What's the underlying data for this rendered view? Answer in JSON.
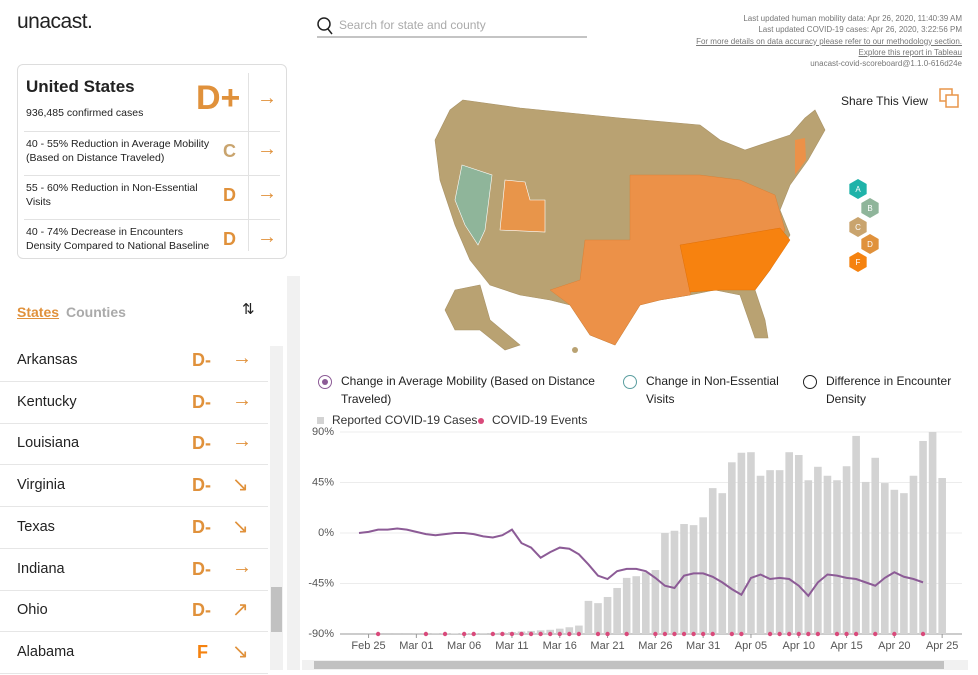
{
  "header": {
    "logo": "unacast.",
    "search_placeholder": "Search for state and county",
    "meta": [
      "Last updated human mobility data: Apr 26, 2020, 11:40:39 AM",
      "Last updated COVID-19 cases: Apr 26, 2020, 3:22:56 PM",
      "For more details on data accuracy please refer to our methodology section.",
      "Explore this report in Tableau",
      "unacast-covid-scoreboard@1.1.0-616d24e"
    ],
    "share": "Share This View"
  },
  "summary": {
    "title": "United States",
    "subtitle": "936,485 confirmed cases",
    "grade": "D+",
    "trend": "→",
    "metrics": [
      {
        "label": "40 - 55% Reduction in Average Mobility (Based on Distance Traveled)",
        "grade": "C",
        "trend": "→"
      },
      {
        "label": "55 - 60% Reduction in Non-Essential Visits",
        "grade": "D",
        "trend": "→"
      },
      {
        "label": "40 - 74% Decrease in Encounters Density Compared to National Baseline",
        "grade": "D",
        "trend": "→"
      }
    ]
  },
  "tabs": [
    "States",
    "Counties"
  ],
  "states": [
    {
      "name": "Arkansas",
      "grade": "D-",
      "trend": "→"
    },
    {
      "name": "Kentucky",
      "grade": "D-",
      "trend": "→"
    },
    {
      "name": "Louisiana",
      "grade": "D-",
      "trend": "→"
    },
    {
      "name": "Virginia",
      "grade": "D-",
      "trend": "↘"
    },
    {
      "name": "Texas",
      "grade": "D-",
      "trend": "↘"
    },
    {
      "name": "Indiana",
      "grade": "D-",
      "trend": "→"
    },
    {
      "name": "Ohio",
      "grade": "D-",
      "trend": "↗"
    },
    {
      "name": "Alabama",
      "grade": "F",
      "trend": "↘"
    }
  ],
  "grade_legend": [
    {
      "grade": "A",
      "color": "#1fb3a9"
    },
    {
      "grade": "B",
      "color": "#8fb59a"
    },
    {
      "grade": "C",
      "color": "#c9a46e"
    },
    {
      "grade": "D",
      "color": "#e0913b"
    },
    {
      "grade": "F",
      "color": "#f5820f"
    }
  ],
  "chart_data": {
    "type": "combo",
    "options": [
      {
        "label": "Change in Average Mobility (Based on Distance Traveled)",
        "color": "#8c5b96",
        "selected": true
      },
      {
        "label": "Change in Non-Essential Visits",
        "color": "#5b9ea0",
        "selected": false
      },
      {
        "label": "Difference in Encounter Density",
        "color": "#222222",
        "selected": false
      }
    ],
    "categories": [
      null,
      "Feb 25",
      null,
      null,
      null,
      null,
      "Mar 01",
      null,
      null,
      null,
      null,
      "Mar 06",
      null,
      null,
      null,
      null,
      "Mar 11",
      null,
      null,
      null,
      null,
      "Mar 16",
      null,
      null,
      null,
      null,
      "Mar 21",
      null,
      null,
      null,
      null,
      "Mar 26",
      null,
      null,
      null,
      null,
      "Mar 31",
      null,
      null,
      null,
      null,
      "Apr 05",
      null,
      null,
      null,
      null,
      "Apr 10",
      null,
      null,
      null,
      null,
      "Apr 15",
      null,
      null,
      null,
      null,
      "Apr 20",
      null,
      null,
      null,
      null,
      "Apr 25"
    ],
    "ylim": [
      -90,
      90
    ],
    "yticks": [
      {
        "value": 90,
        "label": "90%"
      },
      {
        "value": 45,
        "label": "45%"
      },
      {
        "value": 0,
        "label": "0%"
      },
      {
        "value": -45,
        "label": "-45%"
      },
      {
        "value": -90,
        "label": "-90%"
      }
    ],
    "y2lim": [
      0,
      36000
    ],
    "grid": true,
    "series": [
      {
        "name": "Reported COVID-19 Cases",
        "color": "#d3d3d3",
        "type": "bar",
        "axis": "y2",
        "values": [
          0,
          10,
          5,
          5,
          10,
          10,
          20,
          25,
          35,
          60,
          70,
          90,
          110,
          150,
          180,
          250,
          350,
          450,
          550,
          650,
          750,
          950,
          1200,
          1500,
          5900,
          5500,
          6600,
          8200,
          10000,
          10300,
          11000,
          11400,
          18000,
          18400,
          19600,
          19400,
          20800,
          26000,
          25100,
          30600,
          32300,
          32400,
          28200,
          29200,
          29200,
          32400,
          31900,
          27400,
          29800,
          28200,
          27400,
          29900,
          35300,
          27100,
          31400,
          26900,
          25700,
          25100,
          28200,
          34400,
          36000,
          27800
        ]
      },
      {
        "color": "#8c5b96",
        "type": "line",
        "values": [
          0,
          1,
          3,
          3,
          4,
          3,
          1,
          -1,
          -2,
          -1,
          0,
          0,
          -1,
          -3,
          -4,
          -2,
          3,
          -9,
          -13,
          -22,
          -17,
          -13,
          -14,
          -19,
          -28,
          -38,
          -41,
          -34,
          -32,
          -32,
          -34,
          -40,
          -47,
          -49,
          -38,
          -36,
          -36,
          -39,
          -44,
          -50,
          -55,
          -40,
          -37,
          -41,
          -40,
          -41,
          -47,
          -56,
          -44,
          -37,
          -38,
          -40,
          -41,
          -44,
          -47,
          -40,
          -35,
          -39,
          -41,
          -44,
          null,
          null
        ]
      }
    ],
    "events": {
      "name": "COVID-19 Events",
      "color": "#d94a7b",
      "x": [
        2,
        7,
        9,
        11,
        12,
        14,
        15,
        16,
        17,
        18,
        19,
        20,
        21,
        22,
        23,
        25,
        26,
        28,
        31,
        32,
        33,
        34,
        35,
        36,
        37,
        39,
        40,
        43,
        44,
        45,
        46,
        47,
        48,
        50,
        51,
        52,
        54,
        56,
        59
      ]
    }
  }
}
